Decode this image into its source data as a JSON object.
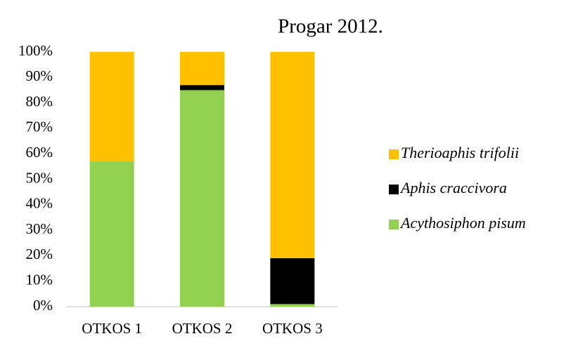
{
  "chart_data": {
    "type": "stacked_bar",
    "title": "Progar 2012.",
    "categories": [
      "OTKOS 1",
      "OTKOS 2",
      "OTKOS 3"
    ],
    "series": [
      {
        "name": "Acythosiphon pisum",
        "color": "#92d050",
        "values": [
          57,
          85,
          1
        ]
      },
      {
        "name": "Aphis craccivora",
        "color": "#000000",
        "values": [
          0,
          2,
          18
        ]
      },
      {
        "name": "Therioaphis trifolii",
        "color": "#ffc000",
        "values": [
          43,
          13,
          81
        ]
      }
    ],
    "ylim": [
      0,
      100
    ],
    "yticks": [
      {
        "value": 0,
        "label": "0%"
      },
      {
        "value": 10,
        "label": "10%"
      },
      {
        "value": 20,
        "label": "20%"
      },
      {
        "value": 30,
        "label": "30%"
      },
      {
        "value": 40,
        "label": "40%"
      },
      {
        "value": 50,
        "label": "50%"
      },
      {
        "value": 60,
        "label": "60%"
      },
      {
        "value": 70,
        "label": "70%"
      },
      {
        "value": 80,
        "label": "80%"
      },
      {
        "value": 90,
        "label": "90%"
      },
      {
        "value": 100,
        "label": "100%"
      }
    ],
    "legend": "right"
  }
}
